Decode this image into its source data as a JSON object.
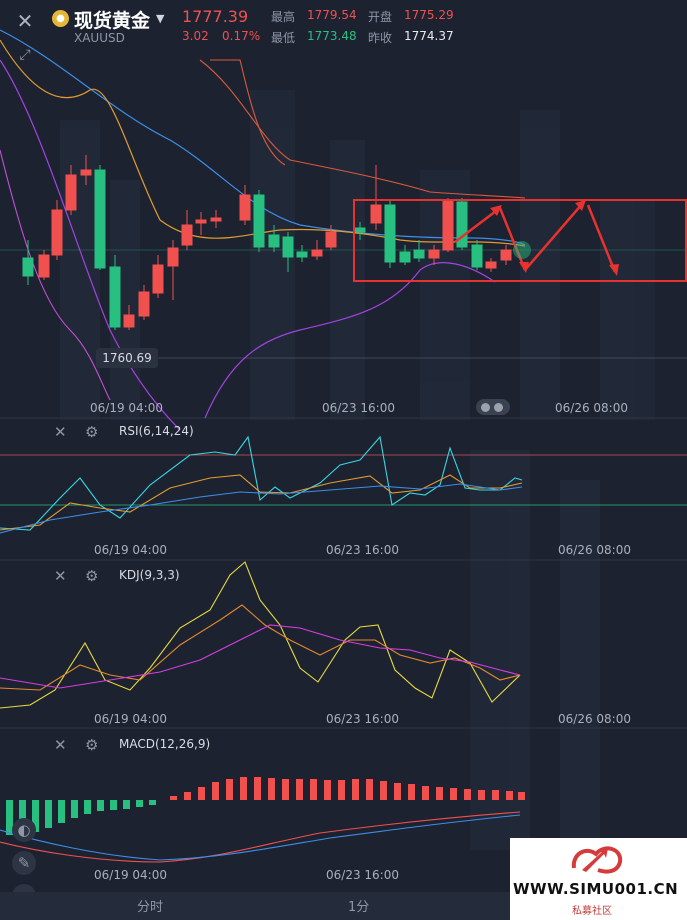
{
  "header": {
    "title": "现货黄金",
    "symbol": "XAUUSD",
    "price": "1777.39",
    "change": "3.02",
    "change_pct": "0.17%",
    "high_label": "最高",
    "high": "1779.54",
    "open_label": "开盘",
    "open": "1775.29",
    "low_label": "最低",
    "low": "1773.48",
    "prev_close_label": "昨收",
    "prev_close": "1774.37"
  },
  "main_chart": {
    "min_price_label": "1760.69",
    "time_labels": [
      "06/19 04:00",
      "06/23 16:00",
      "06/26 08:00"
    ]
  },
  "rsi": {
    "label": "RSI(6,14,24)",
    "time_labels": [
      "06/19 04:00",
      "06/23 16:00",
      "06/26 08:00"
    ]
  },
  "kdj": {
    "label": "KDJ(9,3,3)",
    "time_labels": [
      "06/19 04:00",
      "06/23 16:00",
      "06/26 08:00"
    ]
  },
  "macd": {
    "label": "MACD(12,26,9)",
    "time_labels": [
      "06/19 04:00",
      "06/23 16:00"
    ]
  },
  "tabs": [
    "分时",
    "1分"
  ],
  "watermark": {
    "text": "WWW.SIMU001.CN",
    "sub": "私募社区"
  },
  "colors": {
    "up": "#f0514f",
    "down": "#27c081",
    "bg": "#1c2230",
    "box": "#e8322f"
  },
  "icons": [
    "close-icon",
    "expand-icon",
    "gold-coin-icon",
    "caret-down-icon",
    "settings-icon",
    "pencil-icon",
    "chart-line-icon"
  ]
}
